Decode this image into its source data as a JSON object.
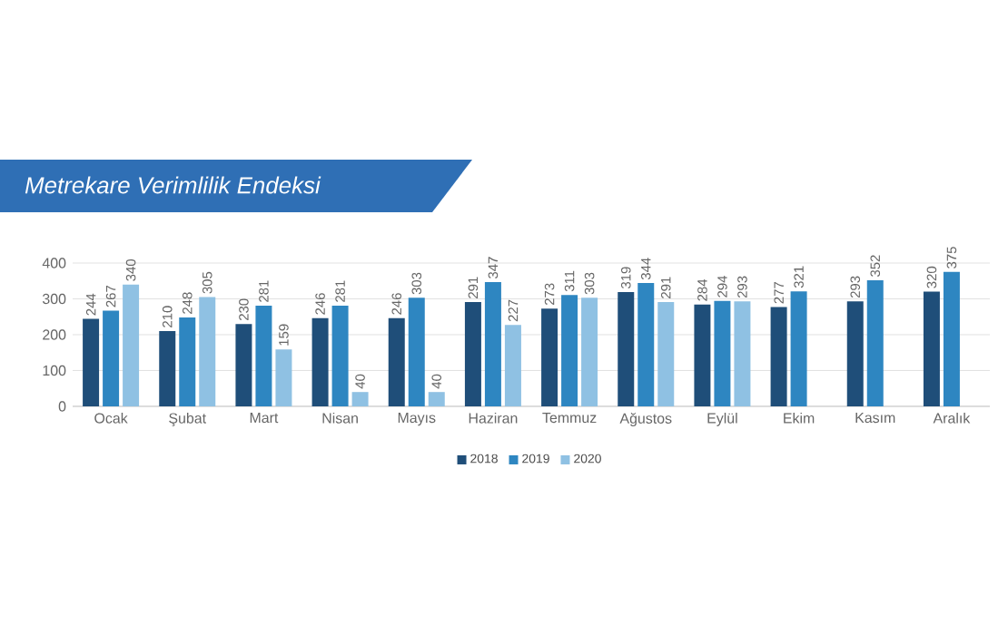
{
  "chart_data": {
    "type": "bar",
    "title": "Metrekare Verimlilik Endeksi",
    "categories": [
      "Ocak",
      "Şubat",
      "Mart",
      "Nisan",
      "Mayıs",
      "Haziran",
      "Temmuz",
      "Ağustos",
      "Eylül",
      "Ekim",
      "Kasım",
      "Aralık"
    ],
    "series": [
      {
        "name": "2018",
        "color": "#1f4e79",
        "values": [
          244,
          210,
          230,
          246,
          246,
          291,
          273,
          319,
          284,
          277,
          293,
          320
        ]
      },
      {
        "name": "2019",
        "color": "#2e86c1",
        "values": [
          267,
          248,
          281,
          281,
          303,
          347,
          311,
          344,
          294,
          321,
          352,
          375
        ]
      },
      {
        "name": "2020",
        "color": "#8fc1e3",
        "values": [
          340,
          305,
          159,
          40,
          40,
          227,
          303,
          291,
          293,
          null,
          null,
          null
        ]
      }
    ],
    "ylim": [
      0,
      400
    ],
    "yticks": [
      0,
      100,
      200,
      300,
      400
    ],
    "grid": "y",
    "legend": "bottom",
    "data_labels": true
  }
}
